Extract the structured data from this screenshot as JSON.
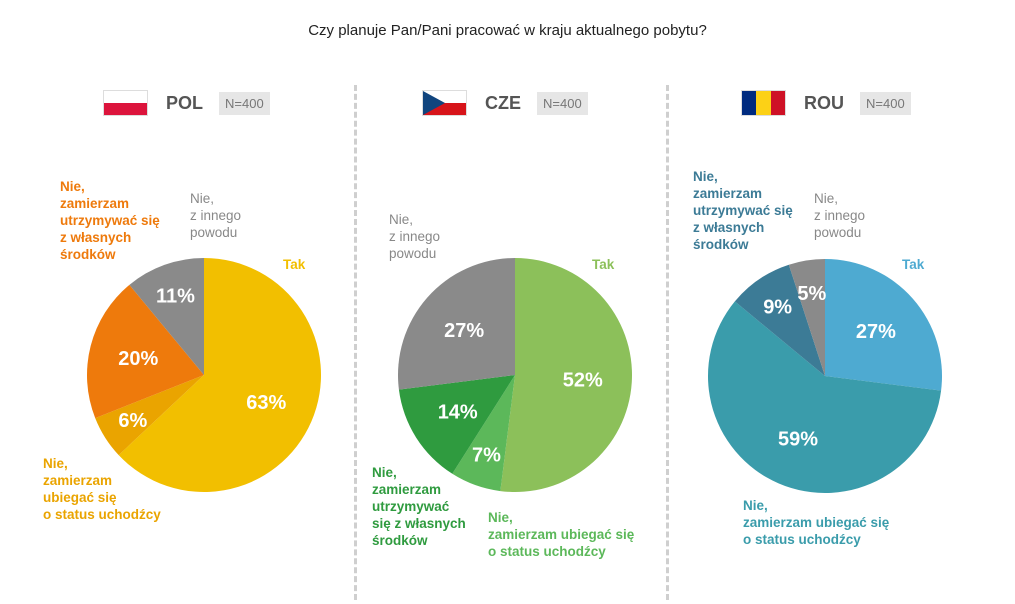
{
  "title": "Czy planuje Pan/Pani pracować w kraju aktualnego pobytu?",
  "chart_data": [
    {
      "type": "pie",
      "country": "POL",
      "n": "N=400",
      "flag_colors": [
        "#ffffff",
        "#dc143c"
      ],
      "slices": [
        {
          "label": "Tak",
          "value": 63,
          "text": "63%",
          "color": "#f2bf00"
        },
        {
          "label": "Nie,\nzamierzam\nubiegać się\no status uchodźcy",
          "value": 6,
          "text": "6%",
          "color": "#eaa400"
        },
        {
          "label": "Nie,\nzamierzam\nutrzymywać się\nz własnych\nśrodków",
          "value": 20,
          "text": "20%",
          "color": "#ee7a0c"
        },
        {
          "label": "Nie,\nz innego\npowodu",
          "value": 11,
          "text": "11%",
          "color": "#8a8a8a"
        }
      ]
    },
    {
      "type": "pie",
      "country": "CZE",
      "n": "N=400",
      "flag_colors": [
        "#ffffff",
        "#d7141a",
        "#11457e"
      ],
      "slices": [
        {
          "label": "Tak",
          "value": 52,
          "text": "52%",
          "color": "#8cc05a"
        },
        {
          "label": "Nie,\nzamierzam ubiegać się\no status uchodźcy",
          "value": 7,
          "text": "7%",
          "color": "#5cb85a"
        },
        {
          "label": "Nie,\nzamierzam\nutrzymywać\nsię z własnych\nśrodków",
          "value": 14,
          "text": "14%",
          "color": "#2f9b3f"
        },
        {
          "label": "Nie,\nz innego\npowodu",
          "value": 27,
          "text": "27%",
          "color": "#8a8a8a"
        }
      ]
    },
    {
      "type": "pie",
      "country": "ROU",
      "n": "N=400",
      "flag_colors": [
        "#002b7f",
        "#fcd116",
        "#ce1126"
      ],
      "slices": [
        {
          "label": "Tak",
          "value": 27,
          "text": "27%",
          "color": "#4eaad1"
        },
        {
          "label": "Nie,\nzamierzam ubiegać się\no status uchodźcy",
          "value": 59,
          "text": "59%",
          "color": "#3a9cab"
        },
        {
          "label": "Nie,\nzamierzam\nutrzymywać się\nz własnych\nśrodków",
          "value": 9,
          "text": "9%",
          "color": "#3c7b96"
        },
        {
          "label": "Nie,\nz innego\npowodu",
          "value": 5,
          "text": "5%",
          "color": "#8a8a8a"
        }
      ]
    }
  ]
}
